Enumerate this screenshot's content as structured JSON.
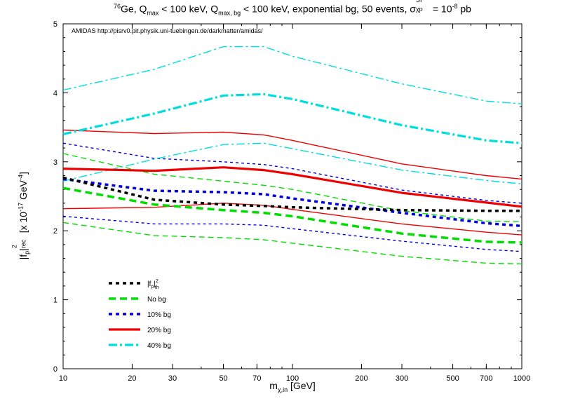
{
  "title": {
    "pre": "",
    "iso": "76",
    "element": "Ge, Q",
    "qsub1": "max",
    "mid": " < 100 keV, Q",
    "qsub2": "max, bg",
    "post": " < 100 keV, exponential bg, 50 events, σ",
    "sigma_sup": "SI",
    "sigma_sub": "χp",
    "eq": " = 10",
    "exp": "-8",
    "unit": " pb"
  },
  "annotation": "AMIDAS   http://pisrv0.pit.physik.uni-tuebingen.de/darkmatter/amidas/",
  "ylabel": {
    "a": "|f",
    "a_sub": "p",
    "b": "|",
    "b_sup": "2",
    "b_sub": "rec",
    "c": "  [x 10",
    "c_sup": "-17",
    "d": " GeV",
    "d_sup": "-4",
    "e": "]"
  },
  "xlabel": {
    "a": "m",
    "a_sub": "χ,in",
    "b": " [GeV]"
  },
  "legend": [
    {
      "label": "|f_p|²_th",
      "main": "|f",
      "sub": "p",
      "after": "|",
      "sup": "2",
      "sub2": "th"
    },
    {
      "label": "No bg"
    },
    {
      "label": "10% bg"
    },
    {
      "label": "20% bg"
    },
    {
      "label": "40% bg"
    }
  ],
  "chart_data": {
    "type": "line",
    "xscale": "log",
    "xlim": [
      10,
      1000
    ],
    "ylim": [
      0,
      5
    ],
    "x_ticks": [
      10,
      20,
      30,
      50,
      70,
      100,
      200,
      300,
      500,
      700,
      1000
    ],
    "x_tick_labels": [
      "10",
      "20",
      "30",
      "50",
      "70",
      "100",
      "200",
      "300",
      "500",
      "700",
      "1000"
    ],
    "y_ticks": [
      0,
      1,
      2,
      3,
      4,
      5
    ],
    "y_tick_labels": [
      "0",
      "1",
      "2",
      "3",
      "4",
      "5"
    ],
    "x": [
      10,
      25,
      50,
      75,
      100,
      300,
      700,
      1000
    ],
    "series": [
      {
        "name": "|f_p|²_th",
        "color": "#000000",
        "style": "dotted-thick",
        "band": "center",
        "values": [
          2.77,
          2.45,
          2.38,
          2.36,
          2.34,
          2.3,
          2.29,
          2.29
        ]
      },
      {
        "name": "No bg",
        "color": "#00dd00",
        "style": "dashed-thick",
        "band": "center",
        "values": [
          2.62,
          2.38,
          2.3,
          2.26,
          2.21,
          1.96,
          1.84,
          1.83
        ]
      },
      {
        "name": "No bg",
        "color": "#00dd00",
        "style": "dashed-thin",
        "band": "upper",
        "values": [
          3.12,
          2.82,
          2.72,
          2.66,
          2.6,
          2.29,
          2.14,
          2.13
        ]
      },
      {
        "name": "No bg",
        "color": "#00dd00",
        "style": "dashed-thin",
        "band": "lower",
        "values": [
          2.12,
          1.93,
          1.9,
          1.87,
          1.82,
          1.63,
          1.53,
          1.52
        ]
      },
      {
        "name": "10% bg",
        "color": "#0000dd",
        "style": "dotted-thick",
        "band": "center",
        "values": [
          2.75,
          2.58,
          2.56,
          2.53,
          2.47,
          2.26,
          2.11,
          2.07
        ]
      },
      {
        "name": "10% bg",
        "color": "#0000dd",
        "style": "dotted-thin",
        "band": "upper",
        "values": [
          3.27,
          3.05,
          3.0,
          2.96,
          2.9,
          2.59,
          2.44,
          2.4
        ]
      },
      {
        "name": "10% bg",
        "color": "#0000dd",
        "style": "dotted-thin",
        "band": "lower",
        "values": [
          2.21,
          2.1,
          2.1,
          2.08,
          2.03,
          1.85,
          1.73,
          1.7
        ]
      },
      {
        "name": "20% bg",
        "color": "#ee0000",
        "style": "solid-thick",
        "band": "center",
        "values": [
          2.9,
          2.87,
          2.92,
          2.88,
          2.82,
          2.55,
          2.41,
          2.35
        ]
      },
      {
        "name": "20% bg",
        "color": "#ee0000",
        "style": "solid-thin",
        "band": "upper",
        "values": [
          3.46,
          3.41,
          3.43,
          3.39,
          3.31,
          2.97,
          2.8,
          2.75
        ]
      },
      {
        "name": "20% bg",
        "color": "#ee0000",
        "style": "solid-thin",
        "band": "lower",
        "values": [
          2.32,
          2.34,
          2.4,
          2.37,
          2.31,
          2.1,
          1.98,
          1.94
        ]
      },
      {
        "name": "40% bg",
        "color": "#00dddd",
        "style": "dashdot-thick",
        "band": "center",
        "values": [
          3.4,
          3.7,
          3.96,
          3.98,
          3.91,
          3.53,
          3.31,
          3.27
        ]
      },
      {
        "name": "40% bg",
        "color": "#00dddd",
        "style": "dashdot-thin",
        "band": "upper",
        "values": [
          4.04,
          4.34,
          4.67,
          4.67,
          4.53,
          4.13,
          3.88,
          3.84
        ]
      },
      {
        "name": "40% bg",
        "color": "#00dddd",
        "style": "dashdot-thin",
        "band": "lower",
        "values": [
          2.72,
          3.04,
          3.25,
          3.27,
          3.19,
          2.88,
          2.73,
          2.68
        ]
      }
    ]
  }
}
